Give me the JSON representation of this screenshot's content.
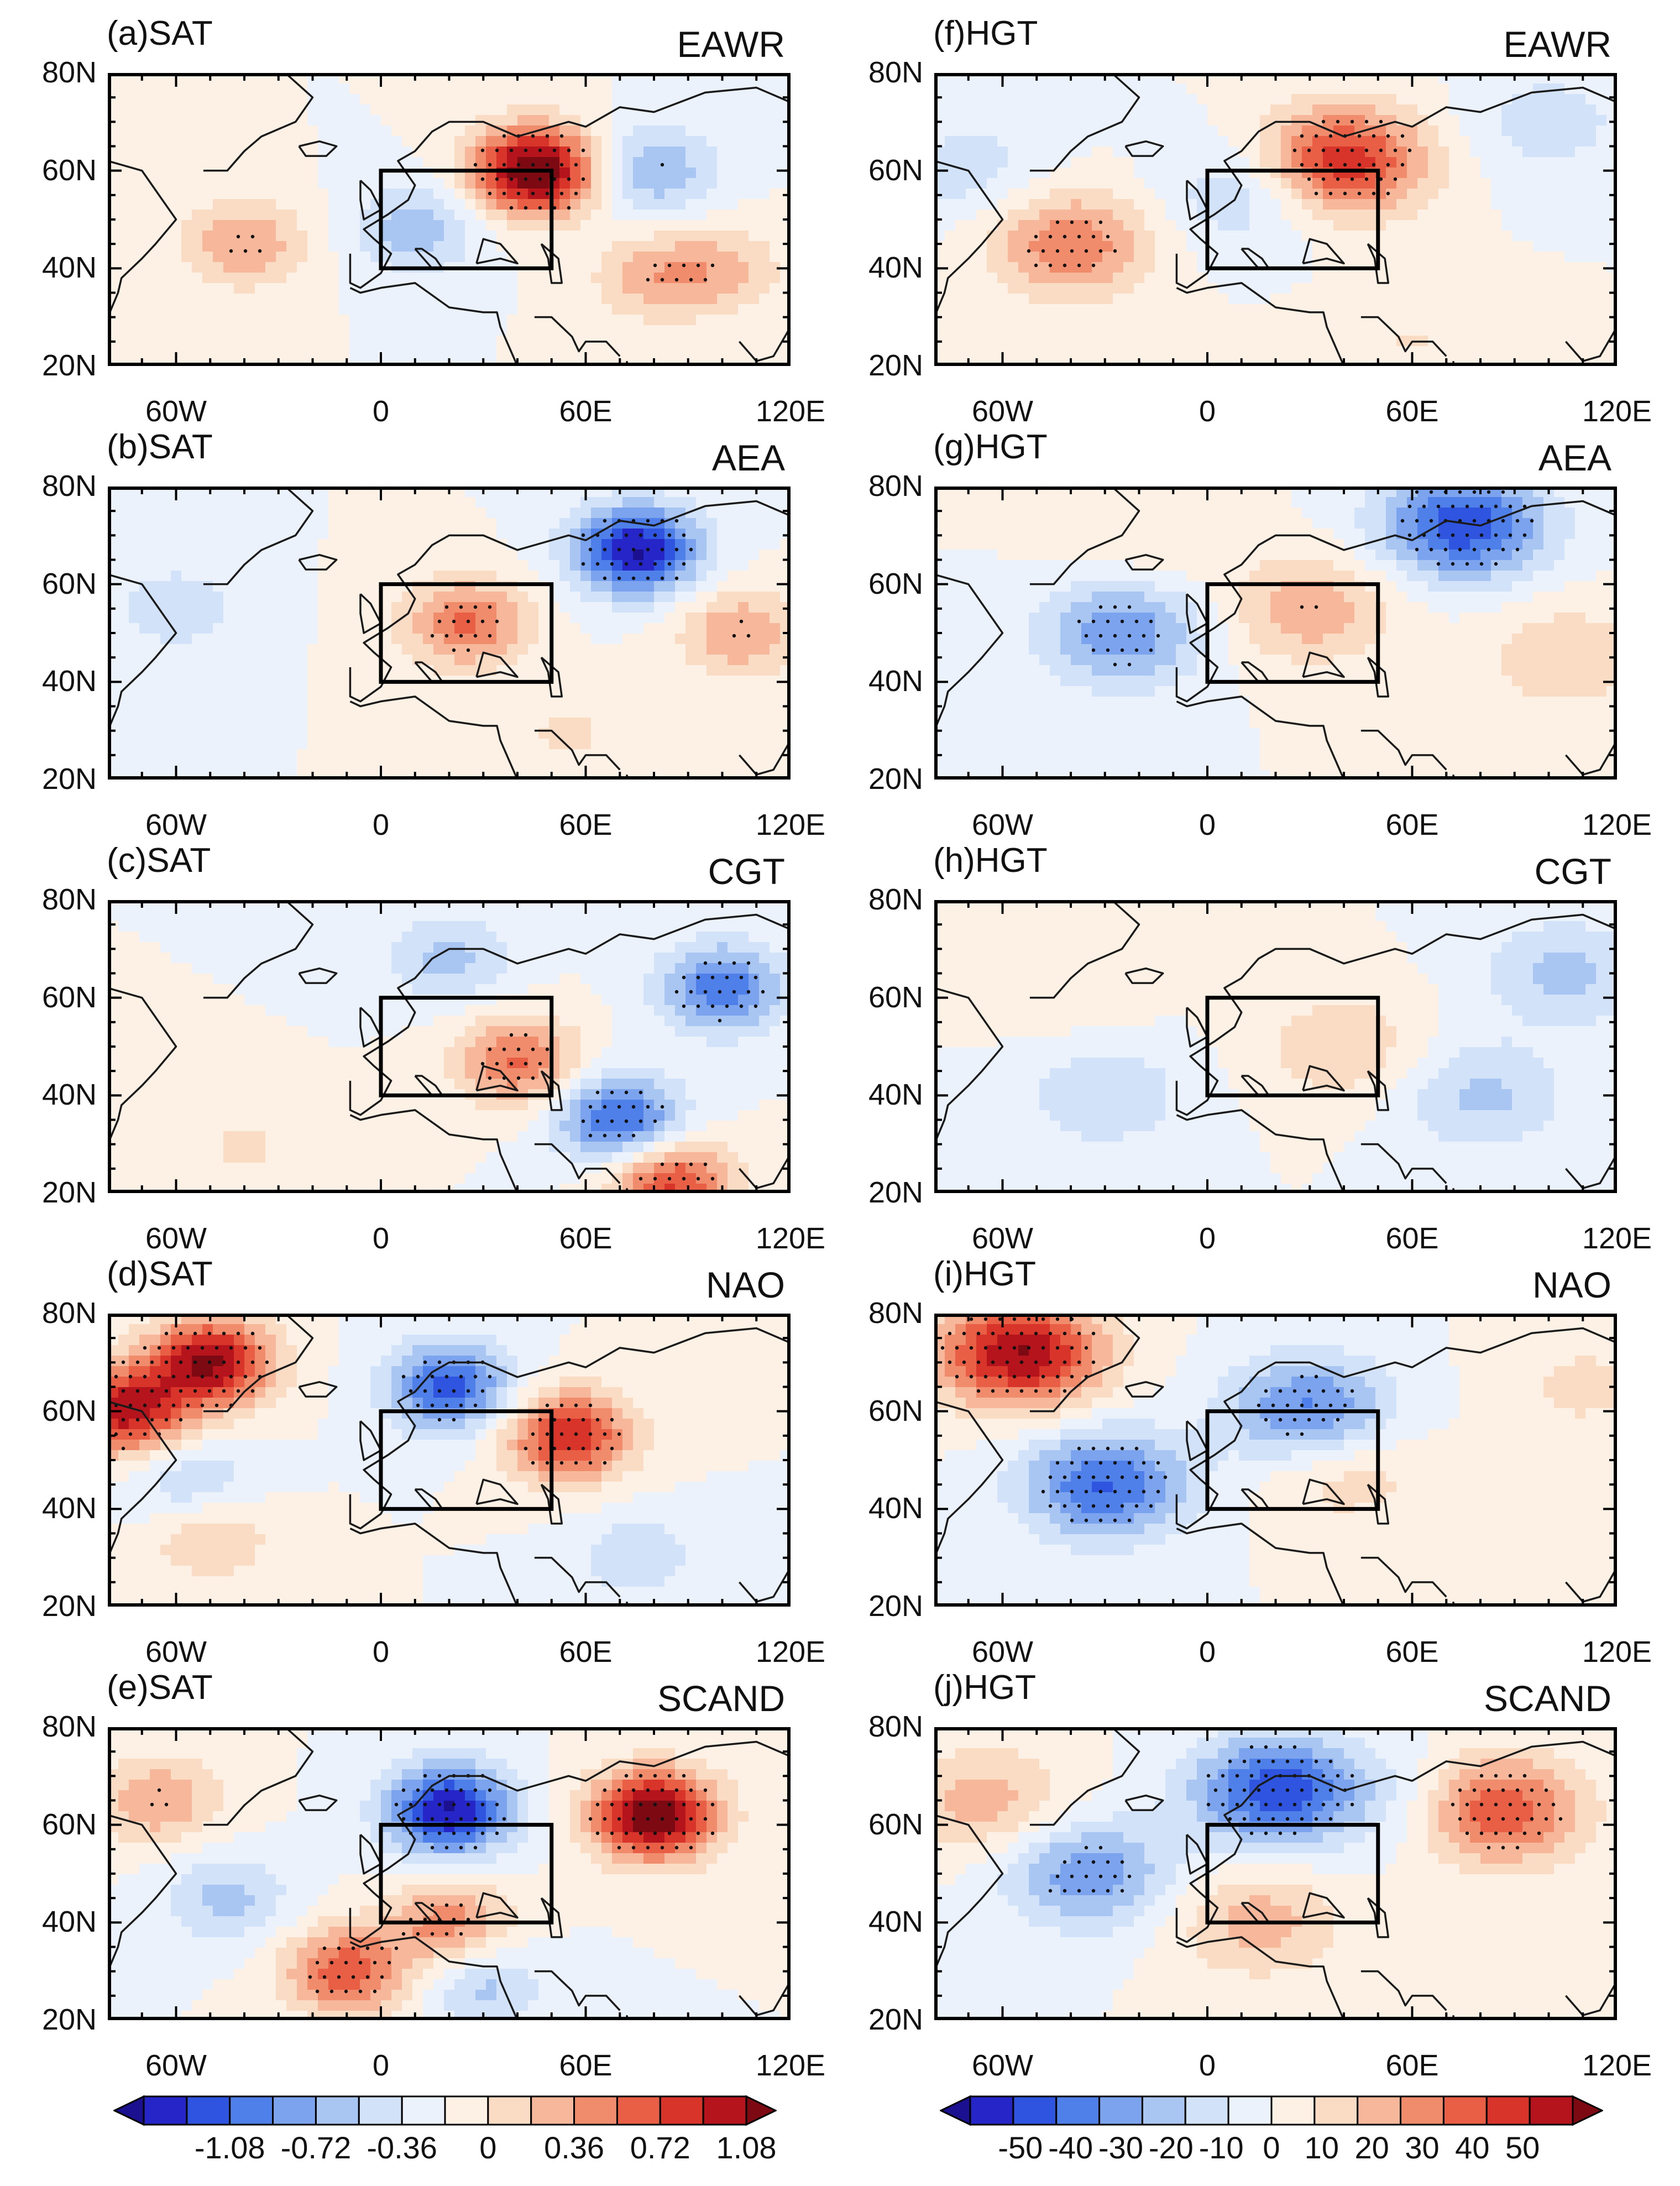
{
  "figure": {
    "left_variable": "SAT",
    "right_variable": "HGT",
    "lat_ticks": [
      "80N",
      "60N",
      "40N",
      "20N"
    ],
    "lon_ticks": [
      "60W",
      "0",
      "60E",
      "120E"
    ]
  },
  "panels": [
    {
      "id": "a",
      "label": "(a)SAT",
      "mode": "EAWR"
    },
    {
      "id": "b",
      "label": "(b)SAT",
      "mode": "AEA"
    },
    {
      "id": "c",
      "label": "(c)SAT",
      "mode": "CGT"
    },
    {
      "id": "d",
      "label": "(d)SAT",
      "mode": "NAO"
    },
    {
      "id": "e",
      "label": "(e)SAT",
      "mode": "SCAND"
    },
    {
      "id": "f",
      "label": "(f)HGT",
      "mode": "EAWR"
    },
    {
      "id": "g",
      "label": "(g)HGT",
      "mode": "AEA"
    },
    {
      "id": "h",
      "label": "(h)HGT",
      "mode": "CGT"
    },
    {
      "id": "i",
      "label": "(i)HGT",
      "mode": "NAO"
    },
    {
      "id": "j",
      "label": "(j)HGT",
      "mode": "SCAND"
    }
  ],
  "colorbars": [
    {
      "id": "sat",
      "labels": [
        "-1.08",
        "-0.72",
        "-0.36",
        "0",
        "0.36",
        "0.72",
        "1.08"
      ]
    },
    {
      "id": "hgt",
      "labels": [
        "-50",
        "-40",
        "-30",
        "-20",
        "-10",
        "0",
        "10",
        "20",
        "30",
        "40",
        "50"
      ]
    }
  ],
  "colors": {
    "scale": [
      "#1a1090",
      "#2626c8",
      "#2f55e0",
      "#4f7fe8",
      "#7ba3ee",
      "#a9c6f3",
      "#d2e2f8",
      "#ebf2fb",
      "#fdf0e4",
      "#fadbc4",
      "#f6b79a",
      "#f08c6c",
      "#e85f46",
      "#d9342a",
      "#b5141c",
      "#7d0a12"
    ],
    "box": "#000000",
    "coast": "#1a1a1a"
  },
  "chart_data": {
    "type": "map",
    "map_domain": {
      "lon": [
        -80,
        120
      ],
      "lat": [
        20,
        80
      ]
    },
    "reference_box": {
      "lon": [
        0,
        50
      ],
      "lat": [
        40,
        60
      ]
    },
    "colorbar_sat": {
      "levels": [
        -1.08,
        -0.72,
        -0.36,
        0,
        0.36,
        0.72,
        1.08
      ],
      "units": ""
    },
    "colorbar_hgt": {
      "levels": [
        -50,
        -40,
        -30,
        -20,
        -10,
        0,
        10,
        20,
        30,
        40,
        50
      ],
      "units": ""
    },
    "patterns": {
      "a": [
        {
          "lon": 45,
          "lat": 60,
          "v": 1.4
        },
        {
          "lon": -40,
          "lat": 45,
          "v": 0.5
        },
        {
          "lon": 80,
          "lat": 60,
          "v": -0.5
        },
        {
          "lon": 10,
          "lat": 48,
          "v": -0.45
        },
        {
          "lon": 80,
          "lat": 38,
          "v": 0.4
        },
        {
          "lon": 100,
          "lat": 40,
          "v": 0.35
        }
      ],
      "b": [
        {
          "lon": 75,
          "lat": 67,
          "v": -1.2
        },
        {
          "lon": 25,
          "lat": 52,
          "v": 0.7
        },
        {
          "lon": 105,
          "lat": 50,
          "v": 0.5
        },
        {
          "lon": -60,
          "lat": 55,
          "v": -0.3
        },
        {
          "lon": 55,
          "lat": 30,
          "v": 0.2
        }
      ],
      "c": [
        {
          "lon": 100,
          "lat": 62,
          "v": -0.8
        },
        {
          "lon": 70,
          "lat": 35,
          "v": -0.9
        },
        {
          "lon": 40,
          "lat": 47,
          "v": 0.7
        },
        {
          "lon": 85,
          "lat": 22,
          "v": 0.9
        },
        {
          "lon": 20,
          "lat": 68,
          "v": -0.4
        },
        {
          "lon": -40,
          "lat": 30,
          "v": 0.2
        }
      ],
      "d": [
        {
          "lon": -50,
          "lat": 70,
          "v": 1.2
        },
        {
          "lon": -75,
          "lat": 60,
          "v": 1.1
        },
        {
          "lon": 20,
          "lat": 65,
          "v": -0.9
        },
        {
          "lon": 55,
          "lat": 55,
          "v": 1.0
        },
        {
          "lon": -50,
          "lat": 35,
          "v": 0.4
        },
        {
          "lon": -55,
          "lat": 45,
          "v": -0.4
        },
        {
          "lon": 75,
          "lat": 30,
          "v": -0.3
        }
      ],
      "e": [
        {
          "lon": 80,
          "lat": 62,
          "v": 1.4
        },
        {
          "lon": 20,
          "lat": 63,
          "v": -1.2
        },
        {
          "lon": -10,
          "lat": 30,
          "v": 0.8
        },
        {
          "lon": 20,
          "lat": 40,
          "v": 0.6
        },
        {
          "lon": -45,
          "lat": 45,
          "v": -0.4
        },
        {
          "lon": -65,
          "lat": 65,
          "v": 0.5
        },
        {
          "lon": 30,
          "lat": 27,
          "v": -0.4
        }
      ],
      "f": [
        {
          "lon": 40,
          "lat": 62,
          "v": 45
        },
        {
          "lon": -40,
          "lat": 45,
          "v": 30
        },
        {
          "lon": 10,
          "lat": 55,
          "v": -15
        },
        {
          "lon": -70,
          "lat": 60,
          "v": -12
        },
        {
          "lon": 100,
          "lat": 70,
          "v": -12
        },
        {
          "lon": 60,
          "lat": 25,
          "v": 8
        }
      ],
      "g": [
        {
          "lon": 75,
          "lat": 72,
          "v": -45
        },
        {
          "lon": -25,
          "lat": 50,
          "v": -30
        },
        {
          "lon": 30,
          "lat": 55,
          "v": 22
        },
        {
          "lon": 105,
          "lat": 45,
          "v": 15
        },
        {
          "lon": -20,
          "lat": 70,
          "v": 8
        }
      ],
      "h": [
        {
          "lon": 40,
          "lat": 50,
          "v": 15
        },
        {
          "lon": -30,
          "lat": 40,
          "v": -15
        },
        {
          "lon": 80,
          "lat": 40,
          "v": -18
        },
        {
          "lon": 105,
          "lat": 65,
          "v": -18
        },
        {
          "lon": -40,
          "lat": 62,
          "v": 6
        }
      ],
      "i": [
        {
          "lon": -55,
          "lat": 72,
          "v": 55
        },
        {
          "lon": -30,
          "lat": 45,
          "v": -40
        },
        {
          "lon": 30,
          "lat": 60,
          "v": -35
        },
        {
          "lon": 40,
          "lat": 48,
          "v": 15
        },
        {
          "lon": 110,
          "lat": 65,
          "v": 10
        }
      ],
      "j": [
        {
          "lon": 85,
          "lat": 63,
          "v": 40
        },
        {
          "lon": 20,
          "lat": 67,
          "v": -45
        },
        {
          "lon": -35,
          "lat": 50,
          "v": -30
        },
        {
          "lon": 15,
          "lat": 40,
          "v": 20
        },
        {
          "lon": -65,
          "lat": 65,
          "v": 20
        },
        {
          "lon": 60,
          "lat": 65,
          "v": -10
        }
      ]
    }
  }
}
